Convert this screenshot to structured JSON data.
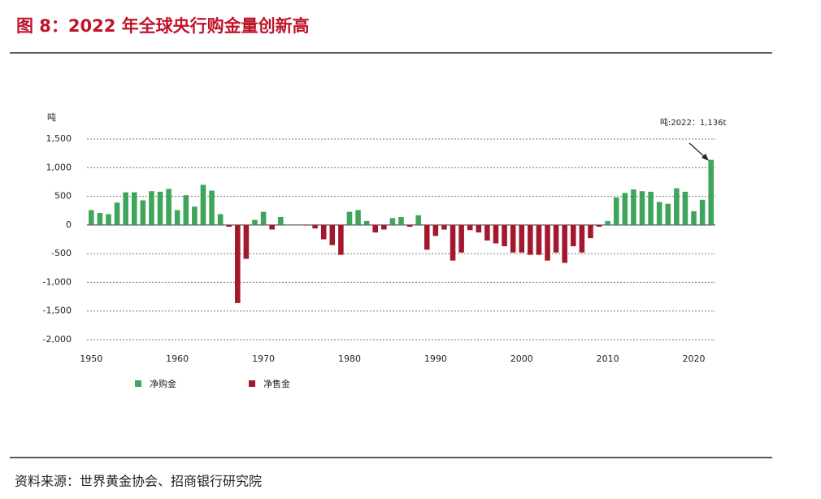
{
  "header": {
    "title": "图 8：2022 年全球央行购金量创新高"
  },
  "chart_data": {
    "type": "bar",
    "y_label": "吨",
    "annotation": "吨:2022：1,136t",
    "x": [
      1950,
      1951,
      1952,
      1953,
      1954,
      1955,
      1956,
      1957,
      1958,
      1959,
      1960,
      1961,
      1962,
      1963,
      1964,
      1965,
      1966,
      1967,
      1968,
      1969,
      1970,
      1971,
      1972,
      1973,
      1974,
      1975,
      1976,
      1977,
      1978,
      1979,
      1980,
      1981,
      1982,
      1983,
      1984,
      1985,
      1986,
      1987,
      1988,
      1989,
      1990,
      1991,
      1992,
      1993,
      1994,
      1995,
      1996,
      1997,
      1998,
      1999,
      2000,
      2001,
      2002,
      2003,
      2004,
      2005,
      2006,
      2007,
      2008,
      2009,
      2010,
      2011,
      2012,
      2013,
      2014,
      2015,
      2016,
      2017,
      2018,
      2019,
      2020,
      2021,
      2022
    ],
    "values": [
      260,
      210,
      190,
      390,
      570,
      570,
      430,
      590,
      580,
      630,
      260,
      520,
      320,
      700,
      600,
      190,
      -30,
      -1360,
      -590,
      90,
      230,
      -80,
      140,
      10,
      10,
      -10,
      -60,
      -250,
      -350,
      -520,
      230,
      260,
      70,
      -130,
      -80,
      120,
      140,
      -30,
      170,
      -430,
      -190,
      -80,
      -620,
      -480,
      -90,
      -130,
      -270,
      -320,
      -370,
      -480,
      -480,
      -520,
      -520,
      -620,
      -480,
      -660,
      -370,
      -480,
      -230,
      -30,
      70,
      480,
      560,
      620,
      590,
      580,
      400,
      370,
      640,
      580,
      240,
      440,
      1136
    ],
    "series": [
      {
        "name": "净购金",
        "color": "#3ea55a"
      },
      {
        "name": "净售金",
        "color": "#a3182d"
      }
    ],
    "xlim": [
      1949.5,
      2022.5
    ],
    "xticks": [
      1950,
      1960,
      1970,
      1980,
      1990,
      2000,
      2010,
      2020
    ],
    "ylim": [
      -2000,
      1500
    ],
    "yticks": [
      {
        "value": -2000,
        "label": "-2,000"
      },
      {
        "value": -1500,
        "label": "-1,500"
      },
      {
        "value": -1000,
        "label": "-1,000"
      },
      -500,
      0,
      500,
      {
        "value": 1000,
        "label": "1,000"
      },
      {
        "value": 1500,
        "label": "1,500"
      }
    ],
    "grid": true
  },
  "footer": {
    "source": "资料来源：世界黄金协会、招商银行研究院"
  }
}
